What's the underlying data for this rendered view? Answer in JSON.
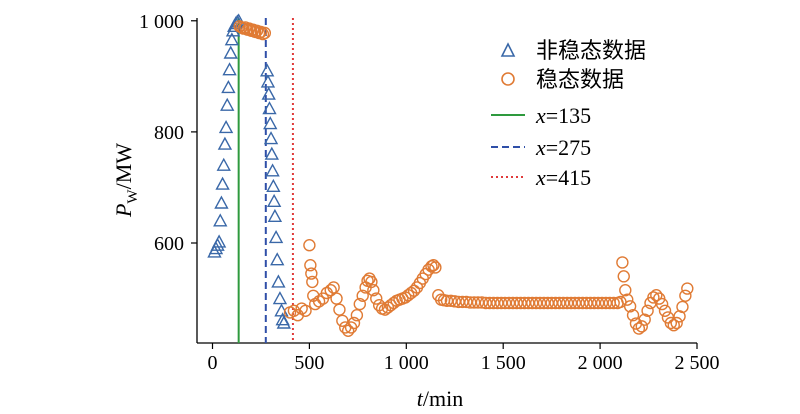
{
  "chart_data": {
    "type": "scatter",
    "xlabel": "t/min",
    "ylabel": "PW/MW",
    "xlabel_parts": {
      "var": "t",
      "unit": "/min"
    },
    "ylabel_parts": {
      "var": "P",
      "sub": "W",
      "unit": "/MW"
    },
    "xlim": [
      -80,
      2500
    ],
    "ylim": [
      420,
      1005
    ],
    "xticks": [
      0,
      500,
      1000,
      1500,
      2000,
      2500
    ],
    "xtick_labels": [
      "0",
      "500",
      "1 000",
      "1 500",
      "2 000",
      "2 500"
    ],
    "yticks": [
      600,
      800,
      1000
    ],
    "ytick_labels": [
      "600",
      "800",
      "1 000"
    ],
    "legend_position": "top-right",
    "grid": false,
    "series": [
      {
        "name": "非稳态数据",
        "marker": "triangle",
        "color": "#3a68a8",
        "points": [
          [
            10,
            584
          ],
          [
            18,
            590
          ],
          [
            26,
            596
          ],
          [
            34,
            602
          ],
          [
            40,
            640
          ],
          [
            46,
            672
          ],
          [
            52,
            706
          ],
          [
            58,
            740
          ],
          [
            64,
            778
          ],
          [
            70,
            808
          ],
          [
            76,
            848
          ],
          [
            82,
            880
          ],
          [
            88,
            912
          ],
          [
            94,
            942
          ],
          [
            100,
            966
          ],
          [
            106,
            982
          ],
          [
            112,
            990
          ],
          [
            120,
            995
          ],
          [
            128,
            998
          ],
          [
            135,
            1000
          ],
          [
            282,
            910
          ],
          [
            286,
            890
          ],
          [
            290,
            868
          ],
          [
            294,
            842
          ],
          [
            298,
            815
          ],
          [
            302,
            788
          ],
          [
            306,
            760
          ],
          [
            310,
            730
          ],
          [
            314,
            702
          ],
          [
            318,
            675
          ],
          [
            322,
            648
          ],
          [
            328,
            610
          ],
          [
            334,
            570
          ],
          [
            340,
            530
          ],
          [
            348,
            500
          ],
          [
            356,
            478
          ],
          [
            362,
            462
          ],
          [
            368,
            456
          ]
        ]
      },
      {
        "name": "稳态数据",
        "marker": "circle",
        "color": "#e07b35",
        "points": [
          [
            140,
            990
          ],
          [
            150,
            988
          ],
          [
            160,
            986
          ],
          [
            170,
            988
          ],
          [
            180,
            984
          ],
          [
            190,
            986
          ],
          [
            200,
            982
          ],
          [
            210,
            984
          ],
          [
            220,
            980
          ],
          [
            230,
            982
          ],
          [
            240,
            978
          ],
          [
            250,
            980
          ],
          [
            260,
            976
          ],
          [
            270,
            978
          ],
          [
            400,
            475
          ],
          [
            420,
            478
          ],
          [
            440,
            470
          ],
          [
            460,
            482
          ],
          [
            480,
            478
          ],
          [
            500,
            596
          ],
          [
            505,
            560
          ],
          [
            510,
            545
          ],
          [
            515,
            530
          ],
          [
            520,
            505
          ],
          [
            530,
            490
          ],
          [
            550,
            495
          ],
          [
            570,
            500
          ],
          [
            590,
            510
          ],
          [
            610,
            515
          ],
          [
            625,
            520
          ],
          [
            640,
            500
          ],
          [
            655,
            480
          ],
          [
            670,
            460
          ],
          [
            685,
            448
          ],
          [
            700,
            442
          ],
          [
            715,
            448
          ],
          [
            730,
            456
          ],
          [
            745,
            470
          ],
          [
            760,
            490
          ],
          [
            775,
            505
          ],
          [
            790,
            520
          ],
          [
            800,
            532
          ],
          [
            810,
            536
          ],
          [
            820,
            530
          ],
          [
            830,
            515
          ],
          [
            845,
            500
          ],
          [
            860,
            488
          ],
          [
            875,
            482
          ],
          [
            890,
            480
          ],
          [
            905,
            484
          ],
          [
            920,
            488
          ],
          [
            935,
            492
          ],
          [
            950,
            496
          ],
          [
            965,
            498
          ],
          [
            980,
            500
          ],
          [
            995,
            502
          ],
          [
            1010,
            506
          ],
          [
            1025,
            510
          ],
          [
            1040,
            514
          ],
          [
            1055,
            520
          ],
          [
            1070,
            528
          ],
          [
            1085,
            536
          ],
          [
            1100,
            544
          ],
          [
            1115,
            552
          ],
          [
            1130,
            558
          ],
          [
            1140,
            560
          ],
          [
            1150,
            556
          ],
          [
            1165,
            506
          ],
          [
            1180,
            498
          ],
          [
            1195,
            497
          ],
          [
            1210,
            496
          ],
          [
            1230,
            496
          ],
          [
            1250,
            495
          ],
          [
            1270,
            494
          ],
          [
            1290,
            494
          ],
          [
            1310,
            494
          ],
          [
            1330,
            493
          ],
          [
            1350,
            493
          ],
          [
            1370,
            493
          ],
          [
            1390,
            493
          ],
          [
            1410,
            492
          ],
          [
            1430,
            492
          ],
          [
            1450,
            492
          ],
          [
            1470,
            492
          ],
          [
            1490,
            492
          ],
          [
            1510,
            492
          ],
          [
            1530,
            492
          ],
          [
            1550,
            492
          ],
          [
            1570,
            492
          ],
          [
            1590,
            492
          ],
          [
            1610,
            492
          ],
          [
            1630,
            492
          ],
          [
            1650,
            492
          ],
          [
            1670,
            492
          ],
          [
            1690,
            492
          ],
          [
            1710,
            492
          ],
          [
            1730,
            492
          ],
          [
            1750,
            492
          ],
          [
            1770,
            492
          ],
          [
            1790,
            492
          ],
          [
            1810,
            492
          ],
          [
            1830,
            492
          ],
          [
            1850,
            492
          ],
          [
            1870,
            492
          ],
          [
            1890,
            492
          ],
          [
            1910,
            492
          ],
          [
            1930,
            492
          ],
          [
            1950,
            492
          ],
          [
            1970,
            492
          ],
          [
            1990,
            492
          ],
          [
            2010,
            492
          ],
          [
            2030,
            492
          ],
          [
            2050,
            492
          ],
          [
            2070,
            492
          ],
          [
            2090,
            492
          ],
          [
            2105,
            494
          ],
          [
            2115,
            565
          ],
          [
            2122,
            540
          ],
          [
            2130,
            515
          ],
          [
            2140,
            498
          ],
          [
            2155,
            486
          ],
          [
            2170,
            470
          ],
          [
            2185,
            455
          ],
          [
            2200,
            446
          ],
          [
            2215,
            450
          ],
          [
            2230,
            462
          ],
          [
            2245,
            478
          ],
          [
            2260,
            492
          ],
          [
            2275,
            502
          ],
          [
            2290,
            506
          ],
          [
            2305,
            500
          ],
          [
            2320,
            490
          ],
          [
            2335,
            478
          ],
          [
            2350,
            466
          ],
          [
            2365,
            456
          ],
          [
            2380,
            452
          ],
          [
            2395,
            456
          ],
          [
            2410,
            468
          ],
          [
            2425,
            485
          ],
          [
            2440,
            505
          ],
          [
            2450,
            518
          ]
        ]
      }
    ],
    "vlines": [
      {
        "name": "x=135",
        "var": "x",
        "text": "=135",
        "x": 135,
        "style": "solid",
        "color": "#2e9a3e"
      },
      {
        "name": "x=275",
        "var": "x",
        "text": "=275",
        "x": 275,
        "style": "dashed",
        "color": "#2f4fa8"
      },
      {
        "name": "x=415",
        "var": "x",
        "text": "=415",
        "x": 415,
        "style": "dotted",
        "color": "#e03a3a"
      }
    ]
  }
}
